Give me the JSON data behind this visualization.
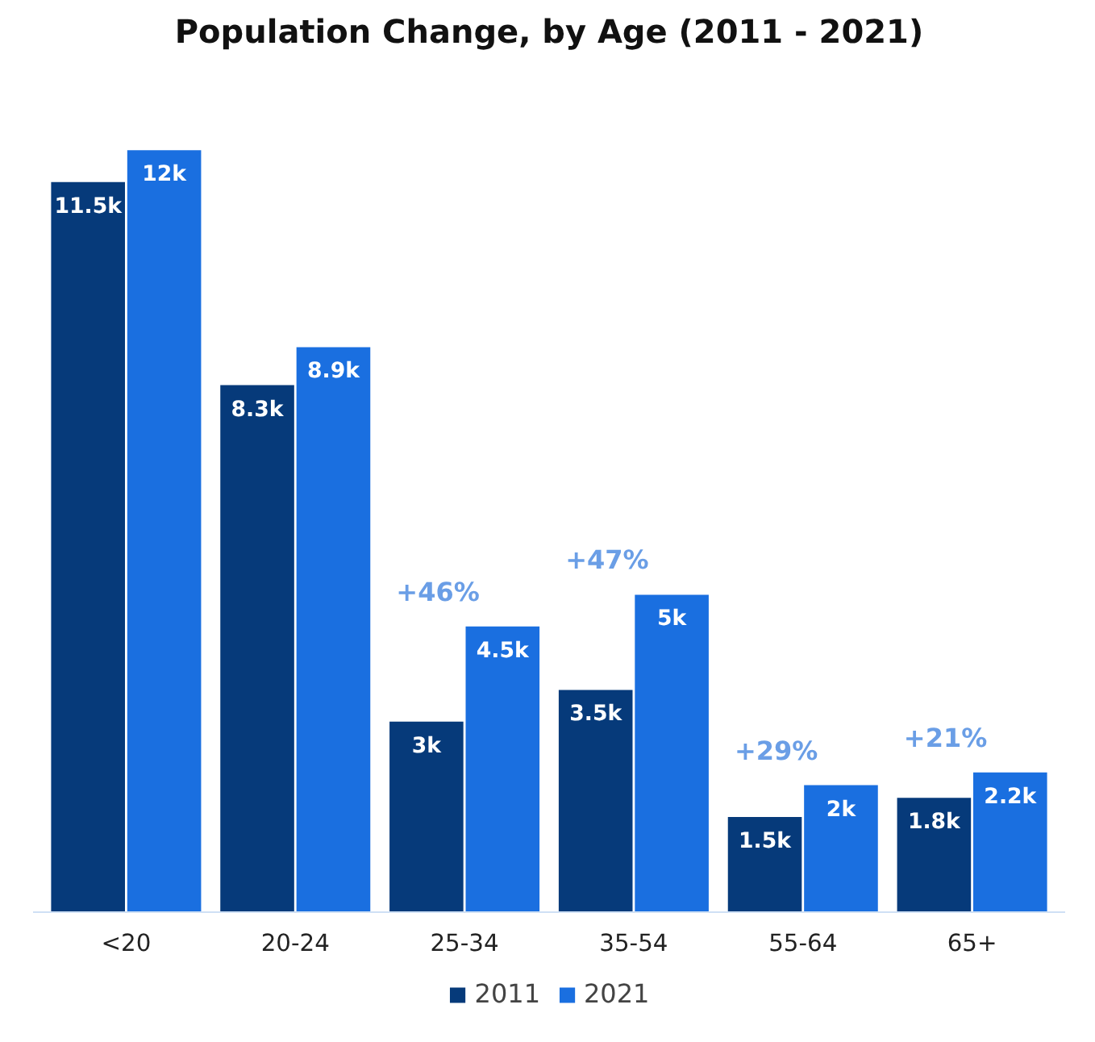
{
  "chart_data": {
    "type": "bar",
    "title": "Population Change, by Age (2011 - 2021)",
    "categories": [
      "<20",
      "20-24",
      "25-34",
      "35-54",
      "55-64",
      "65+"
    ],
    "series": [
      {
        "name": "2011",
        "color": "#063a7a",
        "values": [
          11.5,
          8.3,
          3,
          3.5,
          1.5,
          1.8
        ],
        "value_labels": [
          "11.5k",
          "8.3k",
          "3k",
          "3.5k",
          "1.5k",
          "1.8k"
        ]
      },
      {
        "name": "2021",
        "color": "#1a6fe0",
        "values": [
          12,
          8.9,
          4.5,
          5,
          2,
          2.2
        ],
        "value_labels": [
          "12k",
          "8.9k",
          "4.5k",
          "5k",
          "2k",
          "2.2k"
        ]
      }
    ],
    "annotations": [
      {
        "text": "+46%",
        "x": "25-34",
        "y": 4.5
      },
      {
        "text": "+47%",
        "x": "35-54",
        "y": 5
      },
      {
        "text": "+29%",
        "x": "55-64",
        "y": 2
      },
      {
        "text": "+21%",
        "x": "65+",
        "y": 2.2
      }
    ],
    "legend": "bottom",
    "grid": false
  }
}
